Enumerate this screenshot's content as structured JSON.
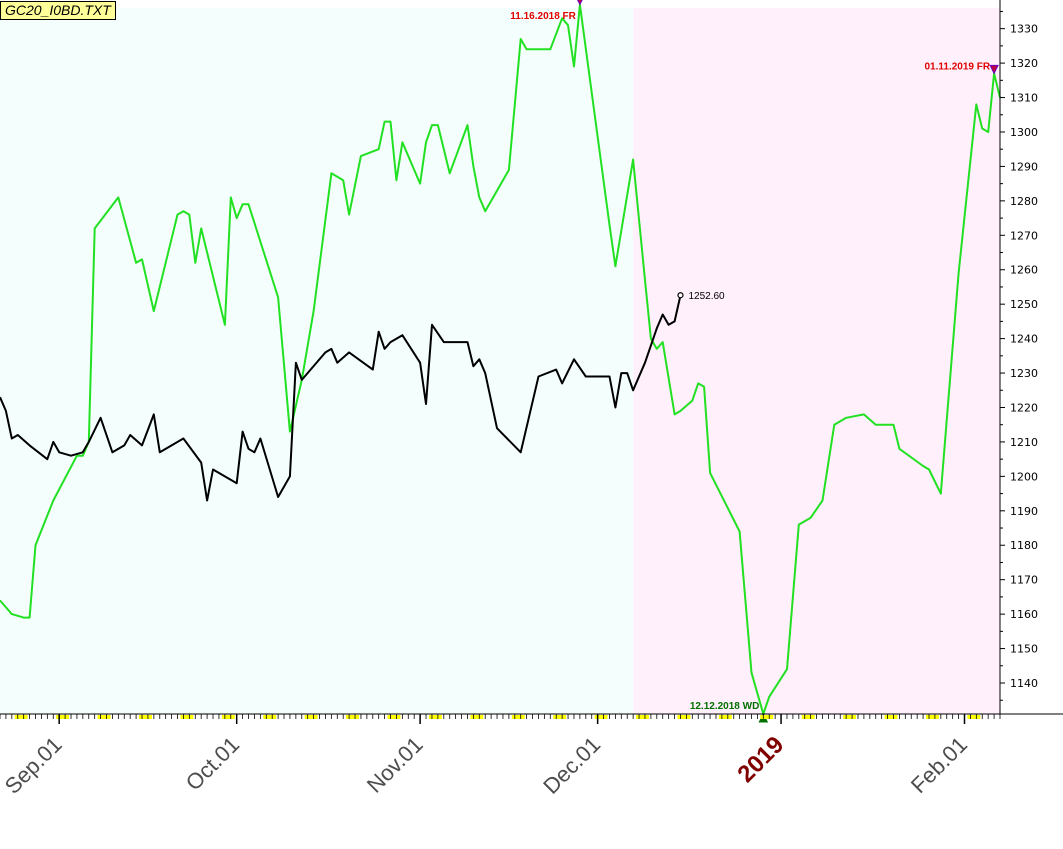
{
  "title": "GC20_I0BD.TXT",
  "colors": {
    "projection": "#22e022",
    "price": "#000000",
    "bg_left": "#f4fffd",
    "bg_right": "#fff0fb",
    "fr_annotation": "#e00000",
    "wd_annotation": "#007000",
    "tick_yellow": "#ffff00",
    "year_label": "#800000"
  },
  "chart_data": {
    "type": "line",
    "title": "GC20_I0BD.TXT",
    "x_range": [
      "2018-08-22",
      "2019-02-07"
    ],
    "ylim": [
      1131,
      1336
    ],
    "y_ticks": [
      1140,
      1150,
      1160,
      1170,
      1180,
      1190,
      1200,
      1210,
      1220,
      1230,
      1240,
      1250,
      1260,
      1270,
      1280,
      1290,
      1300,
      1310,
      1320,
      1330
    ],
    "x_ticks": [
      {
        "date": "2018-09-01",
        "label": "Sep.01",
        "year": false
      },
      {
        "date": "2018-10-01",
        "label": "Oct.01",
        "year": false
      },
      {
        "date": "2018-11-01",
        "label": "Nov.01",
        "year": false
      },
      {
        "date": "2018-12-01",
        "label": "Dec.01",
        "year": false
      },
      {
        "date": "2019-01-01",
        "label": "2019",
        "year": true
      },
      {
        "date": "2019-02-01",
        "label": "Feb.01",
        "year": false
      }
    ],
    "background_split_date": "2018-12-07",
    "grid": false,
    "legend": "none",
    "series": [
      {
        "color": "#22e022",
        "points": [
          [
            "2018-08-22",
            1164
          ],
          [
            "2018-08-24",
            1160
          ],
          [
            "2018-08-26",
            1159
          ],
          [
            "2018-08-27",
            1159
          ],
          [
            "2018-08-28",
            1180
          ],
          [
            "2018-08-31",
            1193
          ],
          [
            "2018-09-04",
            1206
          ],
          [
            "2018-09-05",
            1206
          ],
          [
            "2018-09-06",
            1210
          ],
          [
            "2018-09-07",
            1272
          ],
          [
            "2018-09-11",
            1281
          ],
          [
            "2018-09-14",
            1262
          ],
          [
            "2018-09-15",
            1263
          ],
          [
            "2018-09-17",
            1248
          ],
          [
            "2018-09-21",
            1276
          ],
          [
            "2018-09-22",
            1277
          ],
          [
            "2018-09-23",
            1276
          ],
          [
            "2018-09-24",
            1262
          ],
          [
            "2018-09-25",
            1272
          ],
          [
            "2018-09-29",
            1244
          ],
          [
            "2018-09-30",
            1281
          ],
          [
            "2018-10-01",
            1275
          ],
          [
            "2018-10-02",
            1279
          ],
          [
            "2018-10-03",
            1279
          ],
          [
            "2018-10-08",
            1252
          ],
          [
            "2018-10-10",
            1213
          ],
          [
            "2018-10-12",
            1228
          ],
          [
            "2018-10-14",
            1248
          ],
          [
            "2018-10-17",
            1288
          ],
          [
            "2018-10-19",
            1286
          ],
          [
            "2018-10-20",
            1276
          ],
          [
            "2018-10-22",
            1293
          ],
          [
            "2018-10-25",
            1295
          ],
          [
            "2018-10-26",
            1303
          ],
          [
            "2018-10-27",
            1303
          ],
          [
            "2018-10-28",
            1286
          ],
          [
            "2018-10-29",
            1297
          ],
          [
            "2018-11-01",
            1285
          ],
          [
            "2018-11-02",
            1297
          ],
          [
            "2018-11-03",
            1302
          ],
          [
            "2018-11-04",
            1302
          ],
          [
            "2018-11-06",
            1288
          ],
          [
            "2018-11-09",
            1302
          ],
          [
            "2018-11-10",
            1290
          ],
          [
            "2018-11-11",
            1281
          ],
          [
            "2018-11-12",
            1277
          ],
          [
            "2018-11-16",
            1289
          ],
          [
            "2018-11-18",
            1327
          ],
          [
            "2018-11-19",
            1324
          ],
          [
            "2018-11-23",
            1324
          ],
          [
            "2018-11-25",
            1333
          ],
          [
            "2018-11-26",
            1331
          ],
          [
            "2018-11-27",
            1319
          ],
          [
            "2018-11-28",
            1337
          ],
          [
            "2018-12-03",
            1273
          ],
          [
            "2018-12-04",
            1261
          ],
          [
            "2018-12-07",
            1292
          ],
          [
            "2018-12-09",
            1257
          ],
          [
            "2018-12-10",
            1240
          ],
          [
            "2018-12-11",
            1237
          ],
          [
            "2018-12-12",
            1239
          ],
          [
            "2018-12-14",
            1218
          ],
          [
            "2018-12-15",
            1219
          ],
          [
            "2018-12-17",
            1222
          ],
          [
            "2018-12-18",
            1227
          ],
          [
            "2018-12-19",
            1226
          ],
          [
            "2018-12-20",
            1201
          ],
          [
            "2018-12-25",
            1184
          ],
          [
            "2018-12-27",
            1143
          ],
          [
            "2018-12-29",
            1131
          ],
          [
            "2018-12-30",
            1136
          ],
          [
            "2019-01-02",
            1144
          ],
          [
            "2019-01-04",
            1186
          ],
          [
            "2019-01-06",
            1188
          ],
          [
            "2019-01-08",
            1193
          ],
          [
            "2019-01-10",
            1215
          ],
          [
            "2019-01-12",
            1217
          ],
          [
            "2019-01-15",
            1218
          ],
          [
            "2019-01-17",
            1215
          ],
          [
            "2019-01-20",
            1215
          ],
          [
            "2019-01-21",
            1208
          ],
          [
            "2019-01-25",
            1203
          ],
          [
            "2019-01-26",
            1202
          ],
          [
            "2019-01-28",
            1195
          ],
          [
            "2019-01-31",
            1259
          ],
          [
            "2019-02-03",
            1308
          ],
          [
            "2019-02-04",
            1301
          ],
          [
            "2019-02-05",
            1300
          ],
          [
            "2019-02-06",
            1317
          ],
          [
            "2019-02-07",
            1310
          ]
        ]
      },
      {
        "color": "#000000",
        "points": [
          [
            "2018-08-22",
            1223
          ],
          [
            "2018-08-23",
            1219
          ],
          [
            "2018-08-24",
            1211
          ],
          [
            "2018-08-25",
            1212
          ],
          [
            "2018-08-27",
            1209
          ],
          [
            "2018-08-30",
            1205
          ],
          [
            "2018-08-31",
            1210
          ],
          [
            "2018-09-01",
            1207
          ],
          [
            "2018-09-03",
            1206
          ],
          [
            "2018-09-05",
            1207
          ],
          [
            "2018-09-06",
            1210
          ],
          [
            "2018-09-08",
            1217
          ],
          [
            "2018-09-10",
            1207
          ],
          [
            "2018-09-12",
            1209
          ],
          [
            "2018-09-13",
            1212
          ],
          [
            "2018-09-15",
            1209
          ],
          [
            "2018-09-17",
            1218
          ],
          [
            "2018-09-18",
            1207
          ],
          [
            "2018-09-22",
            1211
          ],
          [
            "2018-09-25",
            1204
          ],
          [
            "2018-09-26",
            1193
          ],
          [
            "2018-09-27",
            1202
          ],
          [
            "2018-10-01",
            1198
          ],
          [
            "2018-10-02",
            1213
          ],
          [
            "2018-10-03",
            1208
          ],
          [
            "2018-10-04",
            1207
          ],
          [
            "2018-10-05",
            1211
          ],
          [
            "2018-10-08",
            1194
          ],
          [
            "2018-10-10",
            1200
          ],
          [
            "2018-10-11",
            1233
          ],
          [
            "2018-10-12",
            1228
          ],
          [
            "2018-10-16",
            1236
          ],
          [
            "2018-10-17",
            1237
          ],
          [
            "2018-10-18",
            1233
          ],
          [
            "2018-10-20",
            1236
          ],
          [
            "2018-10-24",
            1231
          ],
          [
            "2018-10-25",
            1242
          ],
          [
            "2018-10-26",
            1237
          ],
          [
            "2018-10-27",
            1239
          ],
          [
            "2018-10-29",
            1241
          ],
          [
            "2018-11-01",
            1233
          ],
          [
            "2018-11-02",
            1221
          ],
          [
            "2018-11-03",
            1244
          ],
          [
            "2018-11-05",
            1239
          ],
          [
            "2018-11-09",
            1239
          ],
          [
            "2018-11-10",
            1232
          ],
          [
            "2018-11-11",
            1234
          ],
          [
            "2018-11-12",
            1230
          ],
          [
            "2018-11-14",
            1214
          ],
          [
            "2018-11-18",
            1207
          ],
          [
            "2018-11-21",
            1229
          ],
          [
            "2018-11-24",
            1231
          ],
          [
            "2018-11-25",
            1227
          ],
          [
            "2018-11-27",
            1234
          ],
          [
            "2018-11-29",
            1229
          ],
          [
            "2018-12-03",
            1229
          ],
          [
            "2018-12-04",
            1220
          ],
          [
            "2018-12-05",
            1230
          ],
          [
            "2018-12-06",
            1230
          ],
          [
            "2018-12-07",
            1225
          ],
          [
            "2018-12-09",
            1233
          ],
          [
            "2018-12-11",
            1243
          ],
          [
            "2018-12-12",
            1247
          ],
          [
            "2018-12-13",
            1244
          ],
          [
            "2018-12-14",
            1245
          ],
          [
            "2018-12-15",
            1252.6
          ]
        ]
      }
    ],
    "annotations": [
      {
        "date": "2018-11-28",
        "value": 1337,
        "text": "11.16.2018 FR",
        "type": "FR"
      },
      {
        "date": "2019-02-06",
        "value": 1317,
        "text": "01.11.2019 FR",
        "type": "FR"
      },
      {
        "date": "2018-12-29",
        "value": 1131,
        "text": "12.12.2018 WD",
        "type": "WD"
      }
    ],
    "last_value": {
      "date": "2018-12-15",
      "value": 1252.6,
      "label": "1252.60"
    }
  }
}
